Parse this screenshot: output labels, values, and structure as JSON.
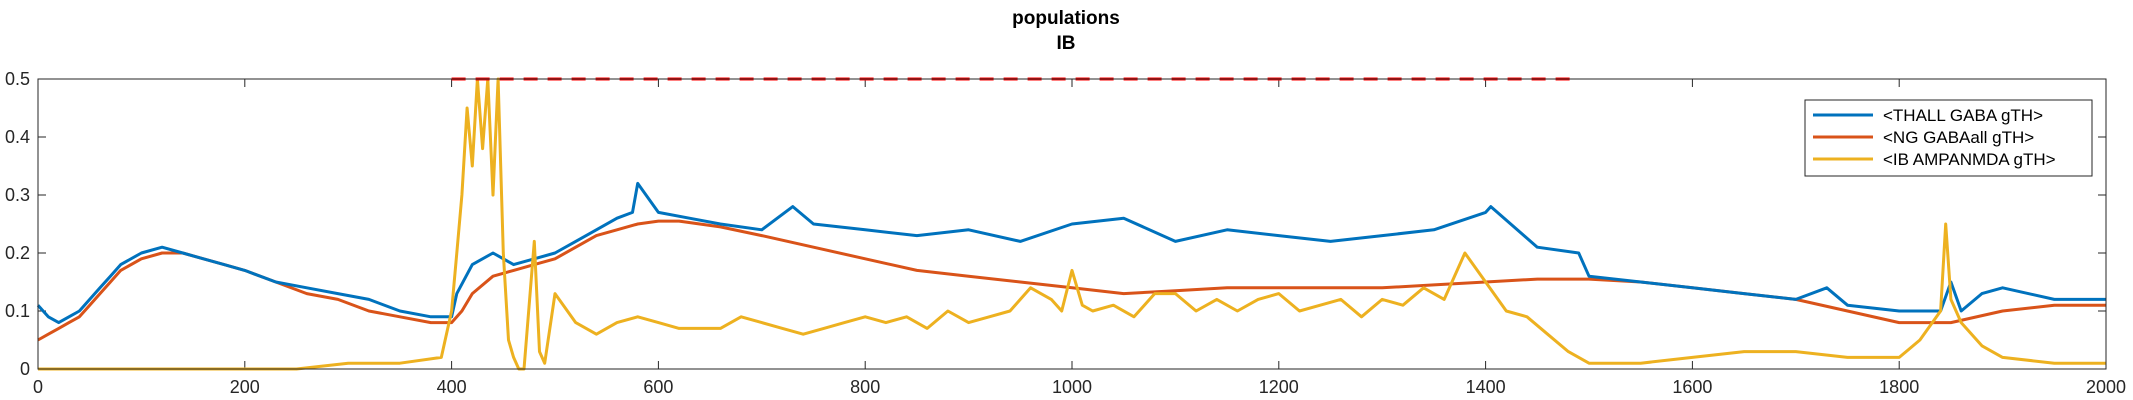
{
  "chart_data": {
    "type": "line",
    "title": "populations",
    "subtitle": "IB",
    "xlabel": "",
    "ylabel": "",
    "xlim": [
      0,
      2000
    ],
    "ylim": [
      0,
      0.5
    ],
    "xticks": [
      0,
      200,
      400,
      600,
      800,
      1000,
      1200,
      1400,
      1600,
      1800,
      2000
    ],
    "xtick_labels": [
      "0",
      "200",
      "400",
      "600",
      "800",
      "1000",
      "1200",
      "1400",
      "1600",
      "1800",
      "2000"
    ],
    "yticks": [
      0,
      0.1,
      0.2,
      0.3,
      0.4,
      0.5
    ],
    "ytick_labels": [
      "0",
      "0.1",
      "0.2",
      "0.3",
      "0.4",
      "0.5"
    ],
    "grid": false,
    "legend_position": "top-right",
    "reference_line": {
      "y": 0.5,
      "x_range": [
        400,
        1490
      ],
      "color": "#FF0000",
      "style": "dashed"
    },
    "series": [
      {
        "name": "<THALL GABA gTH>",
        "color": "#0072BD",
        "x": [
          0,
          10,
          20,
          30,
          40,
          50,
          60,
          70,
          80,
          100,
          120,
          140,
          160,
          180,
          200,
          230,
          260,
          290,
          320,
          350,
          380,
          395,
          400,
          405,
          420,
          440,
          460,
          480,
          500,
          520,
          540,
          560,
          575,
          580,
          600,
          630,
          660,
          700,
          730,
          750,
          800,
          850,
          900,
          950,
          1000,
          1050,
          1100,
          1150,
          1200,
          1250,
          1300,
          1350,
          1400,
          1405,
          1450,
          1490,
          1500,
          1550,
          1600,
          1650,
          1700,
          1730,
          1750,
          1800,
          1840,
          1850,
          1860,
          1880,
          1900,
          1950,
          2000
        ],
        "y": [
          0.11,
          0.09,
          0.08,
          0.09,
          0.1,
          0.12,
          0.14,
          0.16,
          0.18,
          0.2,
          0.21,
          0.2,
          0.19,
          0.18,
          0.17,
          0.15,
          0.14,
          0.13,
          0.12,
          0.1,
          0.09,
          0.09,
          0.09,
          0.13,
          0.18,
          0.2,
          0.18,
          0.19,
          0.2,
          0.22,
          0.24,
          0.26,
          0.27,
          0.32,
          0.27,
          0.26,
          0.25,
          0.24,
          0.28,
          0.25,
          0.24,
          0.23,
          0.24,
          0.22,
          0.25,
          0.26,
          0.22,
          0.24,
          0.23,
          0.22,
          0.23,
          0.24,
          0.27,
          0.28,
          0.21,
          0.2,
          0.16,
          0.15,
          0.14,
          0.13,
          0.12,
          0.14,
          0.11,
          0.1,
          0.1,
          0.15,
          0.1,
          0.13,
          0.14,
          0.12,
          0.12
        ]
      },
      {
        "name": "<NG GABAall gTH>",
        "color": "#D95319",
        "x": [
          0,
          10,
          20,
          30,
          40,
          50,
          60,
          70,
          80,
          100,
          120,
          140,
          160,
          180,
          200,
          230,
          260,
          290,
          320,
          350,
          380,
          400,
          410,
          420,
          440,
          460,
          480,
          500,
          520,
          540,
          560,
          580,
          600,
          620,
          640,
          660,
          700,
          750,
          800,
          850,
          900,
          950,
          1000,
          1050,
          1100,
          1150,
          1200,
          1250,
          1300,
          1350,
          1400,
          1450,
          1500,
          1550,
          1600,
          1650,
          1700,
          1750,
          1800,
          1850,
          1900,
          1950,
          2000
        ],
        "y": [
          0.05,
          0.06,
          0.07,
          0.08,
          0.09,
          0.11,
          0.13,
          0.15,
          0.17,
          0.19,
          0.2,
          0.2,
          0.19,
          0.18,
          0.17,
          0.15,
          0.13,
          0.12,
          0.1,
          0.09,
          0.08,
          0.08,
          0.1,
          0.13,
          0.16,
          0.17,
          0.18,
          0.19,
          0.21,
          0.23,
          0.24,
          0.25,
          0.255,
          0.255,
          0.25,
          0.245,
          0.23,
          0.21,
          0.19,
          0.17,
          0.16,
          0.15,
          0.14,
          0.13,
          0.135,
          0.14,
          0.14,
          0.14,
          0.14,
          0.145,
          0.15,
          0.155,
          0.155,
          0.15,
          0.14,
          0.13,
          0.12,
          0.1,
          0.08,
          0.08,
          0.1,
          0.11,
          0.11
        ]
      },
      {
        "name": "<IB AMPANMDA gTH>",
        "color": "#EDB120",
        "x": [
          0,
          50,
          100,
          150,
          200,
          250,
          300,
          350,
          390,
          400,
          405,
          410,
          415,
          420,
          425,
          430,
          435,
          440,
          445,
          450,
          455,
          460,
          465,
          470,
          480,
          485,
          490,
          500,
          520,
          540,
          560,
          580,
          600,
          620,
          640,
          660,
          680,
          700,
          720,
          740,
          760,
          780,
          800,
          820,
          840,
          860,
          880,
          900,
          920,
          940,
          950,
          960,
          980,
          990,
          1000,
          1010,
          1020,
          1040,
          1060,
          1080,
          1100,
          1120,
          1140,
          1160,
          1180,
          1200,
          1220,
          1240,
          1260,
          1280,
          1300,
          1320,
          1340,
          1360,
          1380,
          1400,
          1420,
          1440,
          1460,
          1480,
          1500,
          1550,
          1600,
          1650,
          1700,
          1750,
          1800,
          1820,
          1840,
          1845,
          1850,
          1860,
          1870,
          1880,
          1900,
          1950,
          2000
        ],
        "y": [
          0.0,
          0.0,
          0.0,
          0.0,
          0.0,
          0.0,
          0.01,
          0.01,
          0.02,
          0.1,
          0.2,
          0.3,
          0.45,
          0.35,
          0.5,
          0.38,
          0.5,
          0.3,
          0.5,
          0.2,
          0.05,
          0.02,
          0.0,
          0.0,
          0.22,
          0.03,
          0.01,
          0.13,
          0.08,
          0.06,
          0.08,
          0.09,
          0.08,
          0.07,
          0.07,
          0.07,
          0.09,
          0.08,
          0.07,
          0.06,
          0.07,
          0.08,
          0.09,
          0.08,
          0.09,
          0.07,
          0.1,
          0.08,
          0.09,
          0.1,
          0.12,
          0.14,
          0.12,
          0.1,
          0.17,
          0.11,
          0.1,
          0.11,
          0.09,
          0.13,
          0.13,
          0.1,
          0.12,
          0.1,
          0.12,
          0.13,
          0.1,
          0.11,
          0.12,
          0.09,
          0.12,
          0.11,
          0.14,
          0.12,
          0.2,
          0.15,
          0.1,
          0.09,
          0.06,
          0.03,
          0.01,
          0.01,
          0.02,
          0.03,
          0.03,
          0.02,
          0.02,
          0.05,
          0.1,
          0.25,
          0.12,
          0.08,
          0.06,
          0.04,
          0.02,
          0.01,
          0.01
        ]
      }
    ]
  }
}
